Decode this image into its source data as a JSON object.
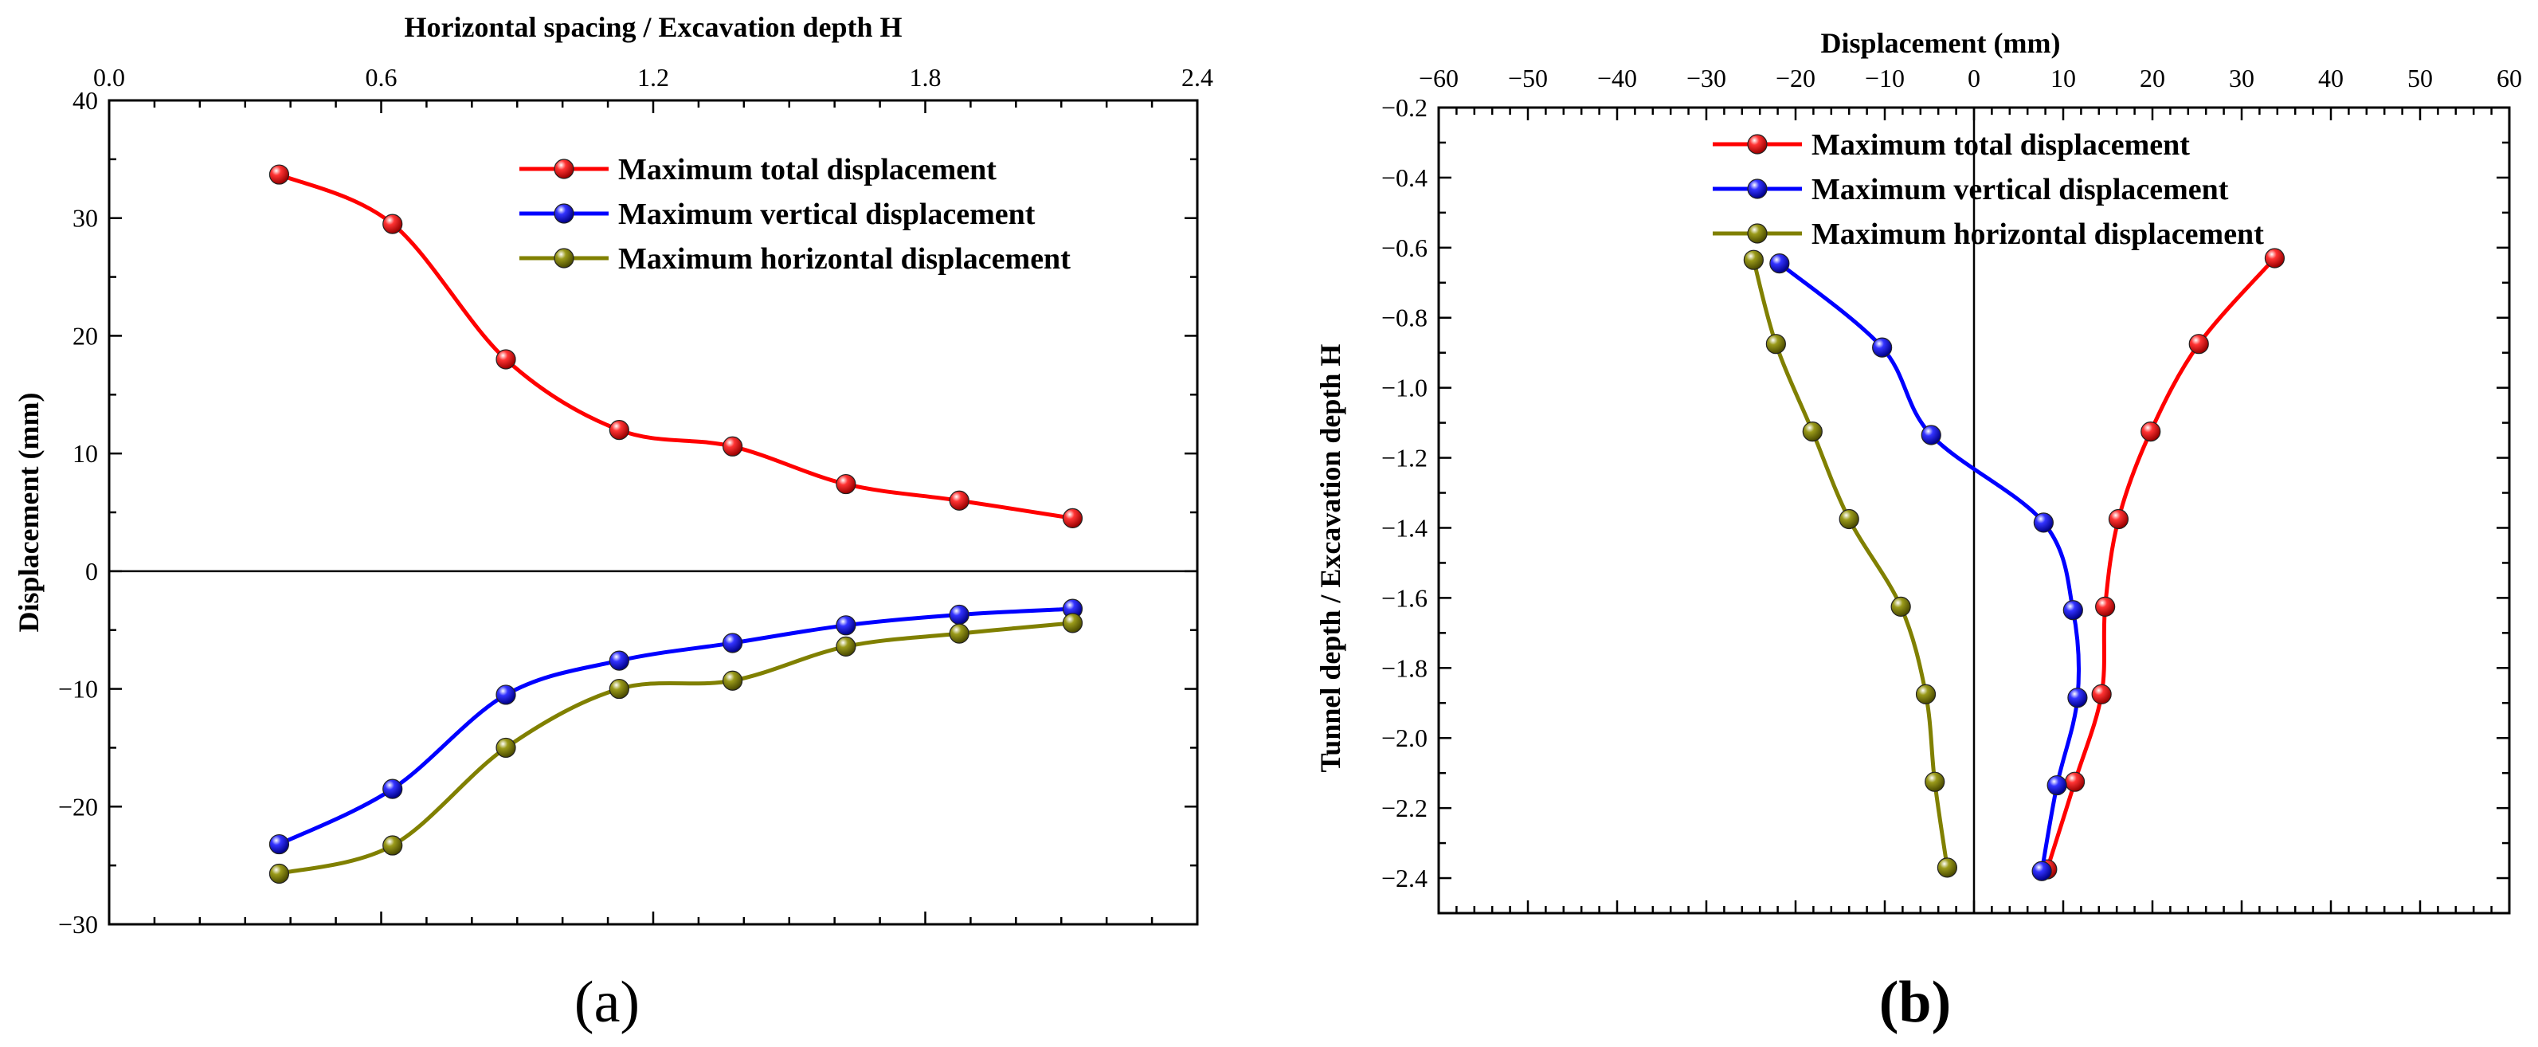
{
  "chart_data": [
    {
      "panel": "(a)",
      "type": "line",
      "xlabel": "Horizontal spacing / Excavation depth H",
      "ylabel": "Displacement (mm)",
      "xlim": [
        0.0,
        2.4
      ],
      "ylim": [
        -30,
        40
      ],
      "xticks": [
        "0.0",
        "0.6",
        "1.2",
        "1.8",
        "2.4"
      ],
      "yticks": [
        "40",
        "30",
        "20",
        "10",
        "0",
        "−10",
        "−20",
        "−30"
      ],
      "legend_position": "top-right",
      "x": [
        0.375,
        0.625,
        0.875,
        1.125,
        1.375,
        1.625,
        1.875,
        2.125
      ],
      "series": [
        {
          "name": "Maximum total displacement",
          "color": "#ff0000",
          "values": [
            33.7,
            29.5,
            18.0,
            12.0,
            10.6,
            7.4,
            6.0,
            4.5
          ]
        },
        {
          "name": "Maximum vertical displacement",
          "color": "#0000ff",
          "values": [
            -23.2,
            -18.5,
            -10.5,
            -7.6,
            -6.1,
            -4.6,
            -3.7,
            -3.2
          ]
        },
        {
          "name": "Maximum horizontal displacement",
          "color": "#808000",
          "values": [
            -25.7,
            -23.3,
            -15.0,
            -10.0,
            -9.3,
            -6.4,
            -5.3,
            -4.4
          ]
        }
      ]
    },
    {
      "panel": "(b)",
      "type": "line",
      "xlabel": "Displacement (mm)",
      "ylabel": "Tunnel depth / Excavation depth H",
      "xlim": [
        -60,
        60
      ],
      "ylim": [
        -2.5,
        -0.2
      ],
      "xticks": [
        "−60",
        "−50",
        "−40",
        "−30",
        "−20",
        "−10",
        "0",
        "10",
        "20",
        "30",
        "40",
        "50",
        "60"
      ],
      "yticks": [
        "−0.2",
        "−0.4",
        "−0.6",
        "−0.8",
        "−1.0",
        "−1.2",
        "−1.4",
        "−1.6",
        "−1.8",
        "−2.0",
        "−2.2",
        "−2.4"
      ],
      "legend_position": "top-center",
      "series": [
        {
          "name": "Maximum total displacement",
          "color": "#ff0000",
          "x": [
            33.7,
            25.2,
            19.8,
            16.2,
            14.7,
            14.3,
            11.3,
            8.2
          ],
          "y": [
            -0.63,
            -0.875,
            -1.125,
            -1.375,
            -1.625,
            -1.875,
            -2.125,
            -2.375
          ]
        },
        {
          "name": "Maximum vertical displacement",
          "color": "#0000ff",
          "x": [
            -21.8,
            -10.3,
            -4.8,
            7.8,
            11.1,
            11.6,
            9.3,
            7.6
          ],
          "y": [
            -0.645,
            -0.885,
            -1.135,
            -1.385,
            -1.635,
            -1.885,
            -2.135,
            -2.38
          ]
        },
        {
          "name": "Maximum horizontal displacement",
          "color": "#808000",
          "x": [
            -24.7,
            -22.2,
            -18.1,
            -14.0,
            -8.2,
            -5.4,
            -4.4,
            -3.0
          ],
          "y": [
            -0.635,
            -0.875,
            -1.125,
            -1.375,
            -1.625,
            -1.875,
            -2.125,
            -2.37
          ]
        }
      ]
    }
  ]
}
